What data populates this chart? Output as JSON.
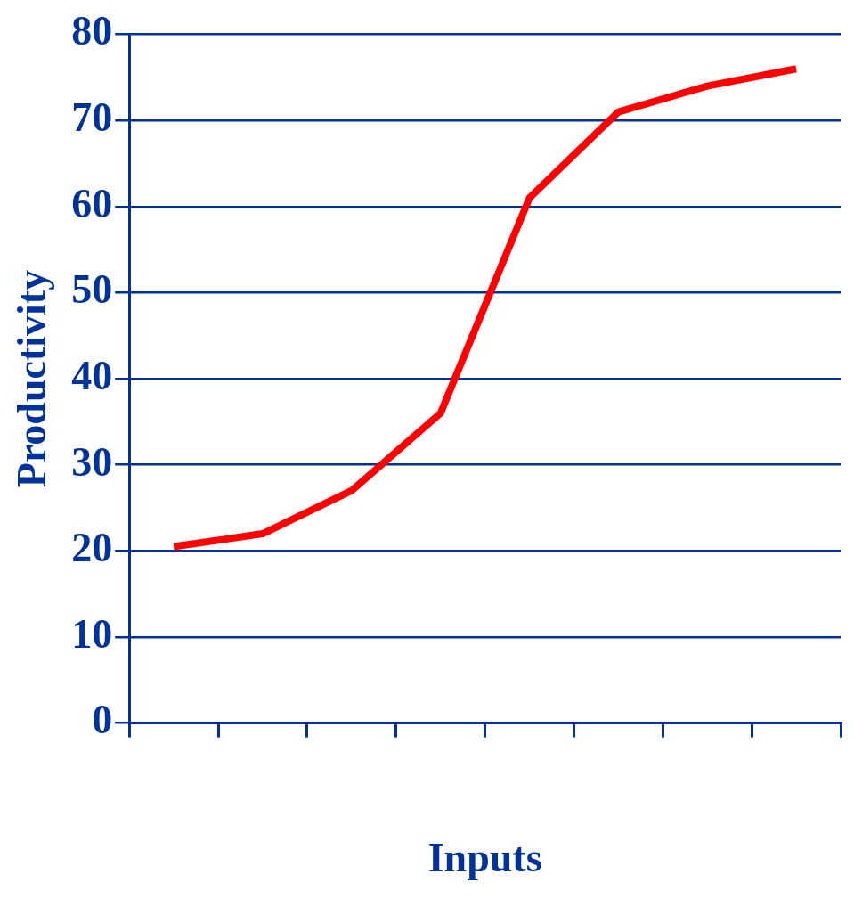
{
  "chart_data": {
    "type": "line",
    "xlabel": "Inputs",
    "ylabel": "Productivity",
    "categories": [
      null,
      null,
      null,
      null,
      null,
      null,
      null,
      null
    ],
    "series": [
      {
        "color": "#ff0000",
        "values": [
          20.5,
          22,
          27,
          36,
          61,
          71,
          74,
          76
        ]
      }
    ],
    "ylim": [
      0,
      80
    ],
    "yticks": [
      0,
      10,
      20,
      30,
      40,
      50,
      60,
      70,
      80
    ],
    "grid": "y",
    "legend": false,
    "marker": "none",
    "line_style": "solid"
  }
}
